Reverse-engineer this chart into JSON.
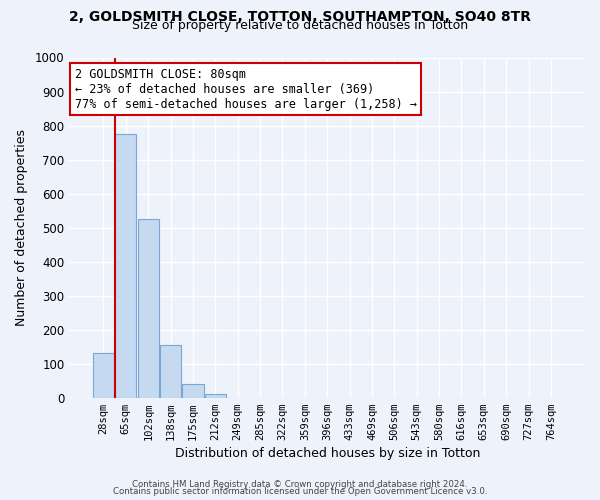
{
  "title_line1": "2, GOLDSMITH CLOSE, TOTTON, SOUTHAMPTON, SO40 8TR",
  "title_line2": "Size of property relative to detached houses in Totton",
  "xlabel": "Distribution of detached houses by size in Totton",
  "ylabel": "Number of detached properties",
  "bar_labels": [
    "28sqm",
    "65sqm",
    "102sqm",
    "138sqm",
    "175sqm",
    "212sqm",
    "249sqm",
    "285sqm",
    "322sqm",
    "359sqm",
    "396sqm",
    "433sqm",
    "469sqm",
    "506sqm",
    "543sqm",
    "580sqm",
    "616sqm",
    "653sqm",
    "690sqm",
    "727sqm",
    "764sqm"
  ],
  "bar_heights": [
    130,
    775,
    525,
    155,
    40,
    10,
    0,
    0,
    0,
    0,
    0,
    0,
    0,
    0,
    0,
    0,
    0,
    0,
    0,
    0,
    0
  ],
  "bar_color": "#c5d9f1",
  "bar_edge_color": "#7ba7d4",
  "vline_color": "#cc0000",
  "ylim": [
    0,
    1000
  ],
  "yticks": [
    0,
    100,
    200,
    300,
    400,
    500,
    600,
    700,
    800,
    900,
    1000
  ],
  "annotation_title": "2 GOLDSMITH CLOSE: 80sqm",
  "annotation_line2": "← 23% of detached houses are smaller (369)",
  "annotation_line3": "77% of semi-detached houses are larger (1,258) →",
  "annotation_box_color": "#ffffff",
  "annotation_box_edge": "#cc0000",
  "footer_line1": "Contains HM Land Registry data © Crown copyright and database right 2024.",
  "footer_line2": "Contains public sector information licensed under the Open Government Licence v3.0.",
  "bg_color": "#eef2fb",
  "grid_color": "#ffffff"
}
